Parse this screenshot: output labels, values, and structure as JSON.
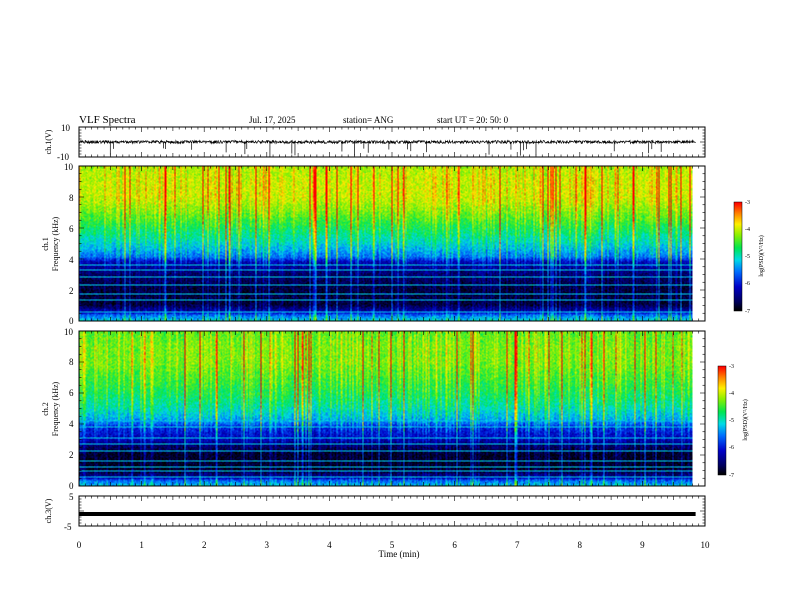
{
  "header": {
    "title": "VLF Spectra",
    "date": "Jul. 17, 2025",
    "station": "station= ANG",
    "start": "start UT =  20: 50: 0"
  },
  "chart_data": [
    {
      "type": "line",
      "panel": "ch1-waveform",
      "ylabel": "ch.1(V)",
      "ylim": [
        -10,
        10
      ],
      "y_ticks": [
        "10",
        "-10"
      ],
      "xlim": [
        0,
        10
      ],
      "baseline": 0,
      "noise_amplitude": 1,
      "spikes_min": [
        0.5,
        0.55,
        1.35,
        1.38,
        1.8,
        2.35,
        2.65,
        2.68,
        3.05,
        3.4,
        3.45,
        4.2,
        4.4,
        4.55,
        4.62,
        4.95,
        5.25,
        5.3,
        5.55,
        6.55,
        6.9,
        7.05,
        7.1,
        7.15,
        7.3,
        8.55,
        9.1,
        9.15,
        9.3
      ]
    },
    {
      "type": "heatmap",
      "panel": "ch1-spectrogram",
      "ylabel_line1": "ch.1",
      "ylabel_line2": "Frequency (kHz)",
      "ylim": [
        0,
        10
      ],
      "y_ticks": [
        "0",
        "2",
        "4",
        "6",
        "8",
        "10"
      ],
      "xlim": [
        0,
        9.85
      ],
      "colorbar": {
        "label": "log(PSD)(V²/Hz)",
        "range": [
          -7,
          -3
        ],
        "ticks": [
          "-3",
          "-4",
          "-5",
          "-6",
          "-7"
        ]
      },
      "profile_kHz_logPSD": [
        [
          0,
          -5.2
        ],
        [
          0.3,
          -5.6
        ],
        [
          0.5,
          -6.2
        ],
        [
          1,
          -6.8
        ],
        [
          2,
          -6.8
        ],
        [
          3,
          -6.6
        ],
        [
          3.8,
          -6.2
        ],
        [
          4.1,
          -5.6
        ],
        [
          5,
          -5.1
        ],
        [
          6,
          -4.7
        ],
        [
          7,
          -4.3
        ],
        [
          8,
          -4.0
        ],
        [
          9,
          -4.0
        ],
        [
          10,
          -4.1
        ]
      ],
      "tonal_lines_kHz": [
        0.5,
        1.3,
        1.7,
        2.3,
        2.8,
        3.3,
        3.6
      ]
    },
    {
      "type": "heatmap",
      "panel": "ch2-spectrogram",
      "ylabel_line1": "ch.2",
      "ylabel_line2": "Frequency (kHz)",
      "ylim": [
        0,
        10
      ],
      "y_ticks": [
        "0",
        "2",
        "4",
        "6",
        "8",
        "10"
      ],
      "xlim": [
        0,
        9.85
      ],
      "colorbar": {
        "label": "log(PSD)(V²/Hz)",
        "range": [
          -7,
          -3
        ],
        "ticks": [
          "-3",
          "-4",
          "-5",
          "-6",
          "-7"
        ]
      },
      "profile_kHz_logPSD": [
        [
          0,
          -5.3
        ],
        [
          0.3,
          -5.7
        ],
        [
          0.5,
          -6.4
        ],
        [
          1,
          -6.9
        ],
        [
          2,
          -6.9
        ],
        [
          2.6,
          -6.6
        ],
        [
          3,
          -6.2
        ],
        [
          3.8,
          -5.9
        ],
        [
          4.2,
          -5.4
        ],
        [
          5,
          -5.0
        ],
        [
          6,
          -4.7
        ],
        [
          7,
          -4.5
        ],
        [
          8,
          -4.3
        ],
        [
          9,
          -4.3
        ],
        [
          10,
          -4.4
        ]
      ],
      "tonal_lines_kHz": [
        0.5,
        0.9,
        1.2,
        1.6,
        2.2,
        2.7,
        3.1,
        3.8,
        4.2
      ]
    },
    {
      "type": "line",
      "panel": "ch3-waveform",
      "ylabel": "ch.3(V)",
      "ylim": [
        -5,
        5
      ],
      "y_ticks": [
        "5",
        "-5"
      ],
      "xlim": [
        0,
        9.85
      ],
      "value": -1
    }
  ],
  "xaxis": {
    "label": "Time (min)",
    "range": [
      0,
      10
    ],
    "ticks": [
      "0",
      "1",
      "2",
      "3",
      "4",
      "5",
      "6",
      "7",
      "8",
      "9",
      "10"
    ]
  }
}
